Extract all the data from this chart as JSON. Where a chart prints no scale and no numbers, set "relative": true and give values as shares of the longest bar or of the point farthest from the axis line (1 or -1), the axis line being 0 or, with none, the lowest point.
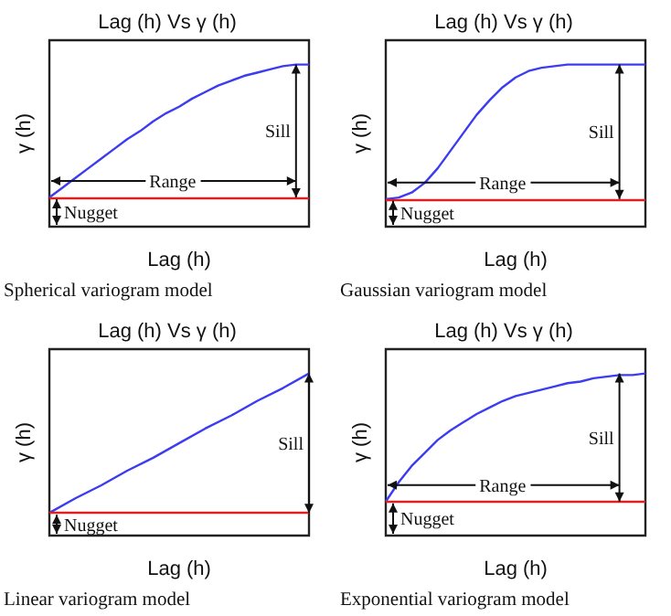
{
  "chart_data": [
    {
      "type": "line",
      "title": "Lag (h) Vs γ (h)",
      "xlabel": "Lag (h)",
      "ylabel": "γ (h)",
      "relative": true,
      "color": "#3c3cf0",
      "categories": [
        null,
        null,
        null,
        null,
        null,
        null,
        null,
        null,
        null,
        null,
        null,
        null,
        null,
        null,
        null,
        null,
        null,
        null,
        null,
        null,
        null
      ],
      "values": [
        0.18,
        0.24,
        0.3,
        0.36,
        0.42,
        0.48,
        0.54,
        0.59,
        0.65,
        0.7,
        0.74,
        0.79,
        0.83,
        0.87,
        0.9,
        0.93,
        0.95,
        0.97,
        0.99,
        1.0,
        1.0
      ],
      "ref_lines": [
        {
          "axis": "y",
          "value": 0.18,
          "color": "#e02020"
        }
      ],
      "annotations": [
        "Range",
        "Sill",
        "Nugget",
        "Spherical variogram model"
      ]
    },
    {
      "type": "line",
      "title": "Lag (h) Vs γ (h)",
      "xlabel": "Lag (h)",
      "ylabel": "γ (h)",
      "relative": true,
      "color": "#3c3cf0",
      "categories": [
        null,
        null,
        null,
        null,
        null,
        null,
        null,
        null,
        null,
        null,
        null,
        null,
        null,
        null,
        null,
        null,
        null,
        null,
        null,
        null,
        null
      ],
      "values": [
        0.17,
        0.18,
        0.21,
        0.27,
        0.36,
        0.47,
        0.58,
        0.69,
        0.78,
        0.86,
        0.92,
        0.96,
        0.98,
        0.99,
        1.0,
        1.0,
        1.0,
        1.0,
        1.0,
        1.0,
        1.0
      ],
      "ref_lines": [
        {
          "axis": "y",
          "value": 0.17,
          "color": "#e02020"
        }
      ],
      "annotations": [
        "Range",
        "Sill",
        "Nugget",
        "Gaussian variogram model"
      ]
    },
    {
      "type": "line",
      "title": "Lag (h) Vs γ (h)",
      "xlabel": "Lag (h)",
      "ylabel": "γ (h)",
      "relative": true,
      "color": "#3c3cf0",
      "categories": [
        null,
        null,
        null,
        null,
        null,
        null,
        null,
        null,
        null,
        null,
        null
      ],
      "values": [
        0.14,
        0.23,
        0.31,
        0.4,
        0.48,
        0.57,
        0.66,
        0.74,
        0.83,
        0.91,
        1.0
      ],
      "ref_lines": [
        {
          "axis": "y",
          "value": 0.14,
          "color": "#e02020"
        }
      ],
      "annotations": [
        "Sill",
        "Nugget",
        "Linear variogram model"
      ]
    },
    {
      "type": "line",
      "title": "Lag (h) Vs γ (h)",
      "xlabel": "Lag (h)",
      "ylabel": "γ (h)",
      "relative": true,
      "color": "#3c3cf0",
      "categories": [
        null,
        null,
        null,
        null,
        null,
        null,
        null,
        null,
        null,
        null,
        null,
        null,
        null,
        null,
        null,
        null,
        null,
        null,
        null,
        null,
        null
      ],
      "values": [
        0.21,
        0.33,
        0.43,
        0.51,
        0.59,
        0.65,
        0.7,
        0.75,
        0.79,
        0.83,
        0.86,
        0.88,
        0.9,
        0.92,
        0.94,
        0.95,
        0.97,
        0.98,
        0.99,
        0.99,
        1.0
      ],
      "ref_lines": [
        {
          "axis": "y",
          "value": 0.21,
          "color": "#e02020"
        }
      ],
      "annotations": [
        "Range",
        "Sill",
        "Nugget",
        "Exponential variogram model"
      ]
    }
  ]
}
